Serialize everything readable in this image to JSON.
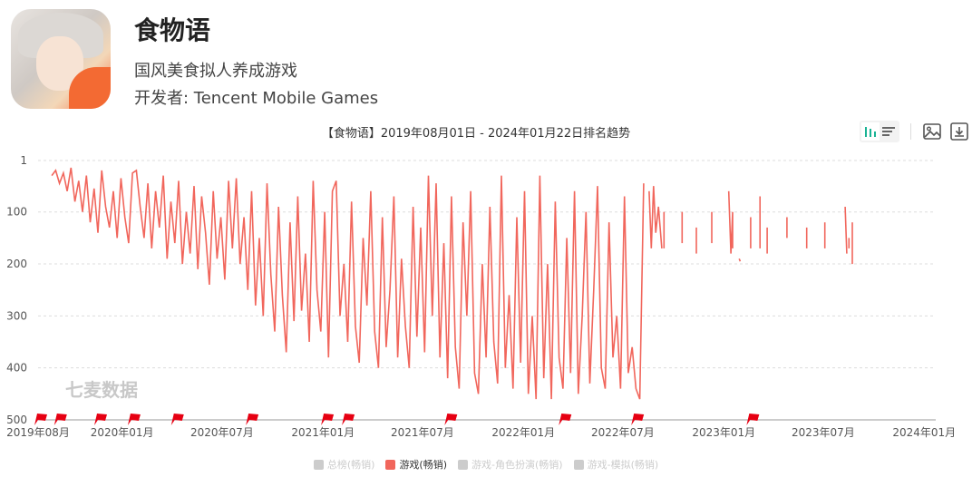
{
  "app": {
    "title": "食物语",
    "subtitle": "国风美食拟人养成游戏",
    "developer_label": "开发者: ",
    "developer": "Tencent Mobile Games"
  },
  "watermark": "七麦数据",
  "toolbar": {
    "icons": [
      "bar-chart-icon",
      "list-icon",
      "image-icon",
      "download-icon"
    ]
  },
  "colors": {
    "series": "#f1665c",
    "flag": "#e60012",
    "grid": "#dddddd"
  },
  "chart_data": {
    "type": "line",
    "title": "【食物语】2019年08月01日 - 2024年01月22日排名趋势",
    "start_date": "2019-08-01",
    "end_date": "2024-01-22",
    "x_unit": "days since 2019-08-01",
    "y_inverted": true,
    "ylim": [
      1,
      500
    ],
    "y_ticks": [
      "1",
      "100",
      "200",
      "300",
      "400",
      "500"
    ],
    "y_tick_values": [
      1,
      100,
      200,
      300,
      400,
      500
    ],
    "x_ticks": [
      "2019年08月",
      "2020年01月",
      "2020年07月",
      "2021年01月",
      "2021年07月",
      "2022年01月",
      "2022年07月",
      "2023年01月",
      "2023年07月",
      "2024年01月"
    ],
    "x_tick_days": [
      0,
      153,
      335,
      519,
      700,
      884,
      1065,
      1249,
      1430,
      1614
    ],
    "grid": true,
    "series": [
      {
        "name": "游戏(畅销)",
        "continuous_start_day": 25,
        "continuous_step_days": 7,
        "continuous_values": [
          30,
          20,
          45,
          25,
          60,
          15,
          80,
          40,
          100,
          30,
          120,
          55,
          140,
          20,
          90,
          130,
          60,
          150,
          35,
          110,
          160,
          25,
          20,
          90,
          150,
          45,
          170,
          60,
          130,
          30,
          190,
          80,
          160,
          40,
          200,
          100,
          180,
          50,
          210,
          70,
          140,
          240,
          60,
          190,
          110,
          230,
          40,
          170,
          35,
          200,
          110,
          250,
          60,
          280,
          150,
          300,
          45,
          220,
          330,
          90,
          260,
          370,
          120,
          310,
          70,
          290,
          180,
          350,
          40,
          250,
          330,
          100,
          380,
          60,
          40,
          300,
          200,
          350,
          80,
          320,
          390,
          150,
          280,
          60,
          330,
          400,
          110,
          360,
          250,
          70,
          380,
          190,
          320,
          400,
          90,
          340,
          130,
          370,
          30,
          300,
          45,
          380,
          160,
          420,
          70,
          360,
          440,
          120,
          300,
          60,
          410,
          450,
          200,
          380,
          90,
          350,
          430,
          30,
          400,
          260,
          440,
          110,
          390,
          60,
          450,
          300,
          460,
          30,
          420,
          200,
          460,
          80,
          380,
          440,
          150,
          410,
          60,
          450,
          300,
          100,
          430,
          250,
          50,
          400,
          440,
          120,
          380,
          300,
          440,
          70,
          410,
          360,
          440,
          460,
          45
        ],
        "segments": [
          [
            [
              1113,
              60
            ],
            [
              1117,
              170
            ],
            [
              1121,
              50
            ],
            [
              1125,
              140
            ],
            [
              1130,
              90
            ],
            [
              1136,
              170
            ]
          ],
          [
            [
              1140,
              100
            ],
            [
              1140,
              170
            ]
          ],
          [
            [
              1173,
              100
            ],
            [
              1173,
              160
            ]
          ],
          [
            [
              1199,
              130
            ],
            [
              1199,
              180
            ]
          ],
          [
            [
              1227,
              100
            ],
            [
              1227,
              160
            ]
          ],
          [
            [
              1258,
              60
            ],
            [
              1262,
              180
            ],
            [
              1265,
              100
            ],
            [
              1265,
              170
            ]
          ],
          [
            [
              1277,
              190
            ],
            [
              1279,
              195
            ]
          ],
          [
            [
              1298,
              110
            ],
            [
              1298,
              170
            ]
          ],
          [
            [
              1315,
              70
            ],
            [
              1315,
              170
            ]
          ],
          [
            [
              1328,
              130
            ],
            [
              1328,
              180
            ]
          ],
          [
            [
              1364,
              110
            ],
            [
              1364,
              150
            ]
          ],
          [
            [
              1400,
              130
            ],
            [
              1400,
              170
            ]
          ],
          [
            [
              1433,
              120
            ],
            [
              1433,
              170
            ]
          ],
          [
            [
              1470,
              90
            ],
            [
              1473,
              180
            ]
          ],
          [
            [
              1477,
              150
            ],
            [
              1477,
              170
            ]
          ],
          [
            [
              1483,
              120
            ],
            [
              1483,
              200
            ]
          ]
        ]
      }
    ],
    "flag_days": [
      0,
      36,
      109,
      170,
      249,
      385,
      522,
      560,
      747,
      955,
      1087,
      1297
    ],
    "legend": [
      {
        "label": "总榜(畅销)",
        "active": false
      },
      {
        "label": "游戏(畅销)",
        "active": true
      },
      {
        "label": "游戏-角色扮演(畅销)",
        "active": false
      },
      {
        "label": "游戏-模拟(畅销)",
        "active": false
      }
    ],
    "legend_position": "bottom"
  }
}
